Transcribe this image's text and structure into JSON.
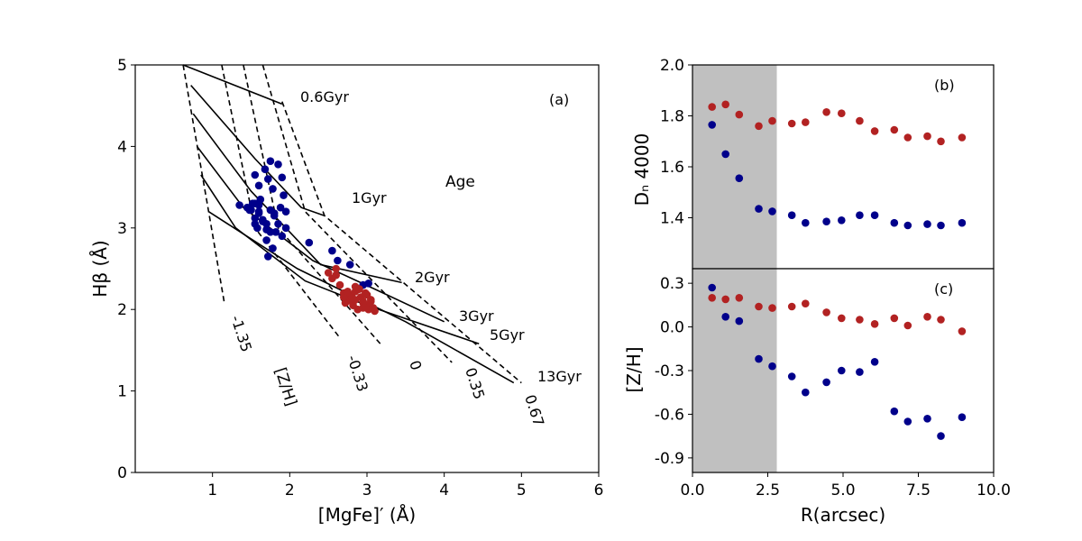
{
  "chart_data": [
    {
      "id": "a",
      "type": "scatter",
      "panel_label": "(a)",
      "xlabel": "[MgFe]′ (Å)",
      "ylabel": "Hβ (Å)",
      "xlim": [
        0,
        6
      ],
      "ylim": [
        0,
        5
      ],
      "xticks": [
        "1",
        "2",
        "3",
        "4",
        "5",
        "6"
      ],
      "yticks": [
        "0",
        "1",
        "2",
        "3",
        "4",
        "5"
      ],
      "grid_labels": {
        "age_title": "Age",
        "zh_title": "[Z/H]",
        "ages": [
          "0.6Gyr",
          "1Gyr",
          "2Gyr",
          "3Gyr",
          "5Gyr",
          "13Gyr"
        ],
        "metallicities": [
          "-1.35",
          "-0.33",
          "0",
          "0.35",
          "0.67"
        ]
      },
      "age_lines": [
        {
          "label": "0.6Gyr",
          "x": [
            0.62,
            1.9
          ],
          "y": [
            5.0,
            4.52
          ]
        },
        {
          "label": "1Gyr",
          "x": [
            0.72,
            1.55,
            2.15,
            2.45
          ],
          "y": [
            4.75,
            3.85,
            3.25,
            3.15
          ]
        },
        {
          "label": "2Gyr",
          "x": [
            0.75,
            1.5,
            2.4,
            3.45
          ],
          "y": [
            4.4,
            3.45,
            2.55,
            2.33
          ]
        },
        {
          "label": "3Gyr",
          "x": [
            0.8,
            1.4,
            2.3,
            3.1,
            4.0
          ],
          "y": [
            4.0,
            3.25,
            2.6,
            2.25,
            1.85
          ]
        },
        {
          "label": "5Gyr",
          "x": [
            0.85,
            1.3,
            2.2,
            3.0,
            4.45
          ],
          "y": [
            3.65,
            3.0,
            2.35,
            2.05,
            1.58
          ]
        },
        {
          "label": "13Gyr",
          "x": [
            0.95,
            2.1,
            3.5,
            4.9
          ],
          "y": [
            3.2,
            2.5,
            1.85,
            1.1
          ]
        }
      ],
      "zh_lines": [
        {
          "label": "-1.35",
          "x": [
            0.62,
            0.95,
            1.15
          ],
          "y": [
            5.0,
            3.2,
            2.1
          ]
        },
        {
          "label": "-0.33",
          "x": [
            1.12,
            1.55,
            2.65
          ],
          "y": [
            5.0,
            3.0,
            1.65
          ]
        },
        {
          "label": "0",
          "x": [
            1.4,
            1.85,
            3.2
          ],
          "y": [
            5.0,
            3.0,
            1.55
          ]
        },
        {
          "label": "0.35",
          "x": [
            1.65,
            2.2,
            4.1
          ],
          "y": [
            5.0,
            3.2,
            1.35
          ]
        },
        {
          "label": "0.67",
          "x": [
            1.9,
            2.45,
            5.0
          ],
          "y": [
            4.55,
            3.15,
            1.1
          ]
        }
      ],
      "series": [
        {
          "name": "blue",
          "color": "#00008b",
          "x": [
            1.35,
            1.45,
            1.5,
            1.55,
            1.6,
            1.65,
            1.7,
            1.75,
            1.8,
            1.55,
            1.6,
            1.62,
            1.68,
            1.72,
            1.75,
            1.78,
            1.85,
            1.9,
            1.92,
            1.95,
            1.58,
            1.65,
            1.7,
            1.75,
            1.8,
            1.85,
            1.88,
            1.55,
            1.6,
            1.7,
            1.78,
            1.82,
            1.9,
            1.95,
            1.6,
            1.72,
            1.55,
            2.25,
            2.55,
            2.62,
            2.78,
            2.95,
            3.02,
            1.48,
            1.52
          ],
          "y": [
            3.28,
            3.25,
            3.22,
            3.3,
            3.18,
            3.1,
            3.05,
            3.22,
            3.18,
            3.65,
            3.52,
            3.35,
            3.72,
            3.6,
            3.82,
            3.48,
            3.78,
            3.62,
            3.4,
            3.2,
            3.0,
            3.08,
            2.98,
            2.95,
            3.15,
            3.05,
            3.25,
            3.12,
            3.28,
            2.85,
            2.75,
            2.95,
            2.9,
            3.0,
            3.2,
            2.65,
            3.05,
            2.82,
            2.72,
            2.6,
            2.55,
            2.3,
            2.32,
            3.22,
            3.3
          ]
        },
        {
          "name": "red",
          "color": "#b22222",
          "x": [
            2.5,
            2.55,
            2.6,
            2.65,
            2.7,
            2.75,
            2.8,
            2.85,
            2.9,
            2.95,
            3.0,
            3.05,
            2.72,
            2.78,
            2.82,
            2.88,
            2.92,
            2.98,
            3.02,
            3.08,
            2.7,
            2.8,
            2.9,
            3.0,
            2.85,
            2.95,
            3.1,
            2.75,
            2.85,
            2.95,
            3.05,
            2.6
          ],
          "y": [
            2.45,
            2.38,
            2.42,
            2.3,
            2.2,
            2.15,
            2.18,
            2.22,
            2.25,
            2.1,
            2.05,
            2.12,
            2.08,
            2.12,
            2.05,
            2.0,
            2.15,
            2.2,
            2.0,
            2.02,
            2.15,
            2.1,
            2.25,
            2.18,
            2.28,
            2.08,
            1.98,
            2.22,
            2.12,
            2.02,
            2.1,
            2.5
          ]
        }
      ]
    },
    {
      "id": "b",
      "type": "scatter",
      "panel_label": "(b)",
      "xlabel": "",
      "ylabel": "Dₙ 4000",
      "xlim": [
        0.0,
        10.0
      ],
      "ylim": [
        1.2,
        2.0
      ],
      "yticks": [
        "1.4",
        "1.6",
        "1.8",
        "2.0"
      ],
      "shaded_region_x": [
        0.0,
        2.8
      ],
      "series": [
        {
          "name": "red",
          "color": "#b22222",
          "x": [
            0.65,
            1.1,
            1.55,
            2.2,
            2.65,
            3.3,
            3.75,
            4.45,
            4.95,
            5.55,
            6.05,
            6.7,
            7.15,
            7.8,
            8.25,
            8.95
          ],
          "y": [
            1.835,
            1.845,
            1.805,
            1.76,
            1.78,
            1.77,
            1.775,
            1.815,
            1.81,
            1.78,
            1.74,
            1.745,
            1.715,
            1.72,
            1.7,
            1.715
          ]
        },
        {
          "name": "blue",
          "color": "#00008b",
          "x": [
            0.65,
            1.1,
            1.55,
            2.2,
            2.65,
            3.3,
            3.75,
            4.45,
            4.95,
            5.55,
            6.05,
            6.7,
            7.15,
            7.8,
            8.25,
            8.95
          ],
          "y": [
            1.765,
            1.65,
            1.555,
            1.435,
            1.425,
            1.41,
            1.38,
            1.385,
            1.39,
            1.41,
            1.41,
            1.38,
            1.37,
            1.375,
            1.37,
            1.38
          ]
        }
      ]
    },
    {
      "id": "c",
      "type": "scatter",
      "panel_label": "(c)",
      "xlabel": "R(arcsec)",
      "ylabel": "[Z/H]",
      "xlim": [
        0.0,
        10.0
      ],
      "ylim": [
        -1.0,
        0.4
      ],
      "xticks": [
        "0.0",
        "2.5",
        "5.0",
        "7.5",
        "10.0"
      ],
      "yticks": [
        "-0.9",
        "-0.6",
        "-0.3",
        "0.0",
        "0.3"
      ],
      "shaded_region_x": [
        0.0,
        2.8
      ],
      "series": [
        {
          "name": "red",
          "color": "#b22222",
          "x": [
            0.65,
            1.1,
            1.55,
            2.2,
            2.65,
            3.3,
            3.75,
            4.45,
            4.95,
            5.55,
            6.05,
            6.7,
            7.15,
            7.8,
            8.25,
            8.95
          ],
          "y": [
            0.2,
            0.19,
            0.2,
            0.14,
            0.13,
            0.14,
            0.16,
            0.1,
            0.06,
            0.05,
            0.02,
            0.06,
            0.01,
            0.07,
            0.05,
            -0.03
          ]
        },
        {
          "name": "blue",
          "color": "#00008b",
          "x": [
            0.65,
            1.1,
            1.55,
            2.2,
            2.65,
            3.3,
            3.75,
            4.45,
            4.95,
            5.55,
            6.05,
            6.7,
            7.15,
            7.8,
            8.25,
            8.95
          ],
          "y": [
            0.27,
            0.07,
            0.04,
            -0.22,
            -0.27,
            -0.34,
            -0.45,
            -0.38,
            -0.3,
            -0.31,
            -0.24,
            -0.58,
            -0.65,
            -0.63,
            -0.75,
            -0.62
          ]
        }
      ]
    }
  ]
}
